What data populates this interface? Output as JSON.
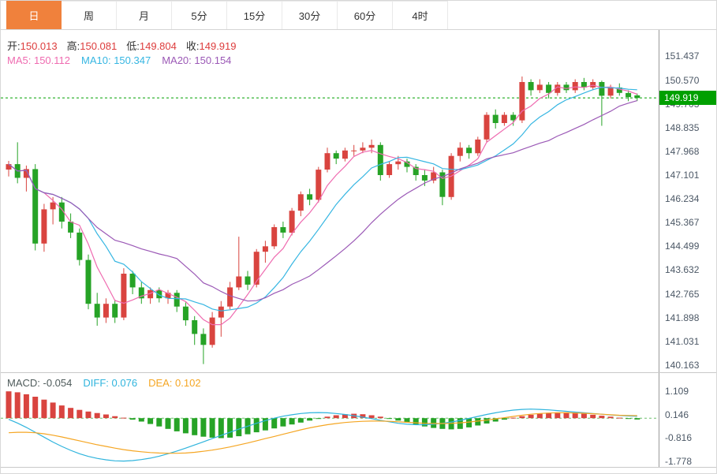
{
  "toolbar": {
    "tabs": [
      {
        "label": "日",
        "active": true
      },
      {
        "label": "周",
        "active": false
      },
      {
        "label": "月",
        "active": false
      },
      {
        "label": "5分",
        "active": false
      },
      {
        "label": "15分",
        "active": false
      },
      {
        "label": "30分",
        "active": false
      },
      {
        "label": "60分",
        "active": false
      },
      {
        "label": "4时",
        "active": false
      }
    ]
  },
  "ohlc_header": {
    "open_label": "开:",
    "open": "150.013",
    "high_label": "高:",
    "high": "150.081",
    "low_label": "低:",
    "low": "149.804",
    "close_label": "收:",
    "close": "149.919"
  },
  "ma_header": {
    "ma5_label": "MA5:",
    "ma5": "150.112",
    "ma10_label": "MA10:",
    "ma10": "150.347",
    "ma20_label": "MA20:",
    "ma20": "150.154"
  },
  "macd_header": {
    "macd_label": "MACD:",
    "macd": "-0.054",
    "diff_label": "DIFF:",
    "diff": "0.076",
    "dea_label": "DEA:",
    "dea": "0.102"
  },
  "colors": {
    "accent": "#f0813c",
    "up": "#d9443f",
    "down": "#26a326",
    "ma5": "#ef6bb0",
    "ma10": "#36b6e2",
    "ma20": "#9b59b6",
    "price_line": "#00a000",
    "badge_bg": "#00a000",
    "diff": "#2fb4dd",
    "dea": "#f5a623",
    "zero_line": "#6fbf6f"
  },
  "chart_data": [
    {
      "type": "candlestick",
      "period": "日",
      "ma_periods": [
        5,
        10,
        20
      ],
      "ma_values": {
        "ma5": 150.112,
        "ma10": 150.347,
        "ma20": 150.154
      },
      "open": 150.013,
      "high": 150.081,
      "low": 149.804,
      "close": 149.919,
      "current_price": 149.919,
      "current_price_label": "149.919",
      "ylim": [
        139.9,
        152.4
      ],
      "yticks": [
        151.437,
        150.57,
        149.703,
        148.835,
        147.968,
        147.101,
        146.234,
        145.367,
        144.499,
        143.632,
        142.765,
        141.898,
        141.031,
        140.163
      ],
      "grid": false,
      "ohlc": [
        [
          147.3,
          147.62,
          147.05,
          147.5
        ],
        [
          147.5,
          148.3,
          146.8,
          147.0
        ],
        [
          147.0,
          147.45,
          146.5,
          147.32
        ],
        [
          147.32,
          147.5,
          144.35,
          144.6
        ],
        [
          144.6,
          146.05,
          144.3,
          145.85
        ],
        [
          145.85,
          146.3,
          145.3,
          146.1
        ],
        [
          146.1,
          146.3,
          145.15,
          145.4
        ],
        [
          145.4,
          145.7,
          144.8,
          145.0
        ],
        [
          145.0,
          145.15,
          143.8,
          144.0
        ],
        [
          144.0,
          144.2,
          142.2,
          142.4
        ],
        [
          142.4,
          142.8,
          141.6,
          141.9
        ],
        [
          141.9,
          142.6,
          141.7,
          142.4
        ],
        [
          142.4,
          142.55,
          141.7,
          141.9
        ],
        [
          141.9,
          143.7,
          141.8,
          143.5
        ],
        [
          143.5,
          143.6,
          142.75,
          143.0
        ],
        [
          143.0,
          143.2,
          142.4,
          142.6
        ],
        [
          142.6,
          143.0,
          142.4,
          142.9
        ],
        [
          142.9,
          143.0,
          142.45,
          142.6
        ],
        [
          142.6,
          142.9,
          142.4,
          142.8
        ],
        [
          142.8,
          142.9,
          142.1,
          142.3
        ],
        [
          142.3,
          142.45,
          141.6,
          141.8
        ],
        [
          141.8,
          141.95,
          140.9,
          141.3
        ],
        [
          141.3,
          141.5,
          140.2,
          140.9
        ],
        [
          140.9,
          142.1,
          140.8,
          141.9
        ],
        [
          141.9,
          142.5,
          141.2,
          142.3
        ],
        [
          142.3,
          143.2,
          142.2,
          143.0
        ],
        [
          143.0,
          144.85,
          142.9,
          143.4
        ],
        [
          143.4,
          143.6,
          142.9,
          143.1
        ],
        [
          143.1,
          144.4,
          143.0,
          144.3
        ],
        [
          144.3,
          144.7,
          143.9,
          144.5
        ],
        [
          144.5,
          145.3,
          144.4,
          145.2
        ],
        [
          145.2,
          145.4,
          144.8,
          145.0
        ],
        [
          145.0,
          145.9,
          144.9,
          145.8
        ],
        [
          145.8,
          146.5,
          145.6,
          146.4
        ],
        [
          146.4,
          146.6,
          146.0,
          146.2
        ],
        [
          146.2,
          147.4,
          146.1,
          147.3
        ],
        [
          147.3,
          148.1,
          147.2,
          147.9
        ],
        [
          147.9,
          148.0,
          147.5,
          147.7
        ],
        [
          147.7,
          148.1,
          147.6,
          148.0
        ],
        [
          148.0,
          148.2,
          147.8,
          148.0
        ],
        [
          148.0,
          148.3,
          147.9,
          148.1
        ],
        [
          148.1,
          148.4,
          147.9,
          148.2
        ],
        [
          148.2,
          148.3,
          146.9,
          147.1
        ],
        [
          147.1,
          147.6,
          147.0,
          147.5
        ],
        [
          147.5,
          147.8,
          147.3,
          147.6
        ],
        [
          147.6,
          147.7,
          147.2,
          147.4
        ],
        [
          147.4,
          147.5,
          146.9,
          147.1
        ],
        [
          147.1,
          147.3,
          146.7,
          146.9
        ],
        [
          146.9,
          147.4,
          146.8,
          147.2
        ],
        [
          147.2,
          147.3,
          146.0,
          146.3
        ],
        [
          146.3,
          147.9,
          146.2,
          147.8
        ],
        [
          147.8,
          148.3,
          147.6,
          148.1
        ],
        [
          148.1,
          148.2,
          147.7,
          147.9
        ],
        [
          147.9,
          148.5,
          147.8,
          148.4
        ],
        [
          148.4,
          149.4,
          148.3,
          149.3
        ],
        [
          149.3,
          149.5,
          148.8,
          149.0
        ],
        [
          149.0,
          149.4,
          148.9,
          149.3
        ],
        [
          149.3,
          149.4,
          148.9,
          149.1
        ],
        [
          149.1,
          150.7,
          149.0,
          150.5
        ],
        [
          150.5,
          150.6,
          150.0,
          150.2
        ],
        [
          150.2,
          150.6,
          150.1,
          150.4
        ],
        [
          150.4,
          150.5,
          149.9,
          150.1
        ],
        [
          150.1,
          150.5,
          150.0,
          150.4
        ],
        [
          150.4,
          150.5,
          150.1,
          150.2
        ],
        [
          150.2,
          150.6,
          150.1,
          150.5
        ],
        [
          150.5,
          150.65,
          150.2,
          150.3
        ],
        [
          150.3,
          150.6,
          150.2,
          150.5
        ],
        [
          150.5,
          150.55,
          148.9,
          150.0
        ],
        [
          150.0,
          150.4,
          149.9,
          150.3
        ],
        [
          150.3,
          150.45,
          150.0,
          150.1
        ],
        [
          150.1,
          150.2,
          149.8,
          149.95
        ],
        [
          150.013,
          150.081,
          149.804,
          149.919
        ]
      ]
    },
    {
      "type": "macd",
      "macd_current": -0.054,
      "diff_current": 0.076,
      "dea_current": 0.102,
      "ylim": [
        -2.0,
        1.85
      ],
      "yticks": [
        1.109,
        0.146,
        -0.816,
        -1.778
      ],
      "hist": [
        1.1,
        1.06,
        0.98,
        0.88,
        0.76,
        0.64,
        0.52,
        0.42,
        0.34,
        0.27,
        0.21,
        0.15,
        0.08,
        0.02,
        -0.06,
        -0.14,
        -0.24,
        -0.34,
        -0.44,
        -0.54,
        -0.62,
        -0.7,
        -0.76,
        -0.8,
        -0.82,
        -0.8,
        -0.74,
        -0.66,
        -0.58,
        -0.5,
        -0.42,
        -0.34,
        -0.26,
        -0.18,
        -0.1,
        -0.02,
        0.06,
        0.12,
        0.16,
        0.18,
        0.16,
        0.12,
        0.06,
        -0.02,
        -0.1,
        -0.18,
        -0.26,
        -0.34,
        -0.4,
        -0.44,
        -0.46,
        -0.44,
        -0.38,
        -0.3,
        -0.22,
        -0.14,
        -0.06,
        0.02,
        0.08,
        0.14,
        0.18,
        0.22,
        0.24,
        0.24,
        0.22,
        0.18,
        0.14,
        0.1,
        0.06,
        0.02,
        -0.02,
        -0.054
      ],
      "diff": [
        -0.05,
        -0.2,
        -0.38,
        -0.58,
        -0.78,
        -0.98,
        -1.16,
        -1.32,
        -1.46,
        -1.57,
        -1.65,
        -1.71,
        -1.75,
        -1.76,
        -1.74,
        -1.7,
        -1.64,
        -1.56,
        -1.46,
        -1.35,
        -1.23,
        -1.1,
        -0.97,
        -0.84,
        -0.71,
        -0.58,
        -0.45,
        -0.33,
        -0.21,
        -0.1,
        0.0,
        0.08,
        0.14,
        0.19,
        0.22,
        0.23,
        0.22,
        0.19,
        0.15,
        0.1,
        0.04,
        -0.02,
        -0.09,
        -0.15,
        -0.21,
        -0.25,
        -0.27,
        -0.27,
        -0.25,
        -0.21,
        -0.16,
        -0.09,
        -0.01,
        0.07,
        0.15,
        0.22,
        0.28,
        0.33,
        0.36,
        0.37,
        0.36,
        0.34,
        0.31,
        0.28,
        0.25,
        0.22,
        0.19,
        0.16,
        0.13,
        0.11,
        0.09,
        0.076
      ],
      "dea": [
        -0.6,
        -0.58,
        -0.58,
        -0.6,
        -0.64,
        -0.7,
        -0.77,
        -0.85,
        -0.93,
        -1.01,
        -1.09,
        -1.16,
        -1.23,
        -1.29,
        -1.34,
        -1.38,
        -1.41,
        -1.43,
        -1.44,
        -1.44,
        -1.43,
        -1.4,
        -1.36,
        -1.31,
        -1.25,
        -1.18,
        -1.1,
        -1.02,
        -0.93,
        -0.84,
        -0.75,
        -0.66,
        -0.57,
        -0.48,
        -0.4,
        -0.33,
        -0.27,
        -0.22,
        -0.18,
        -0.15,
        -0.13,
        -0.12,
        -0.12,
        -0.13,
        -0.15,
        -0.17,
        -0.19,
        -0.21,
        -0.22,
        -0.22,
        -0.21,
        -0.19,
        -0.16,
        -0.12,
        -0.08,
        -0.03,
        0.02,
        0.07,
        0.12,
        0.16,
        0.19,
        0.21,
        0.22,
        0.22,
        0.21,
        0.2,
        0.18,
        0.16,
        0.14,
        0.12,
        0.11,
        0.102
      ]
    }
  ]
}
